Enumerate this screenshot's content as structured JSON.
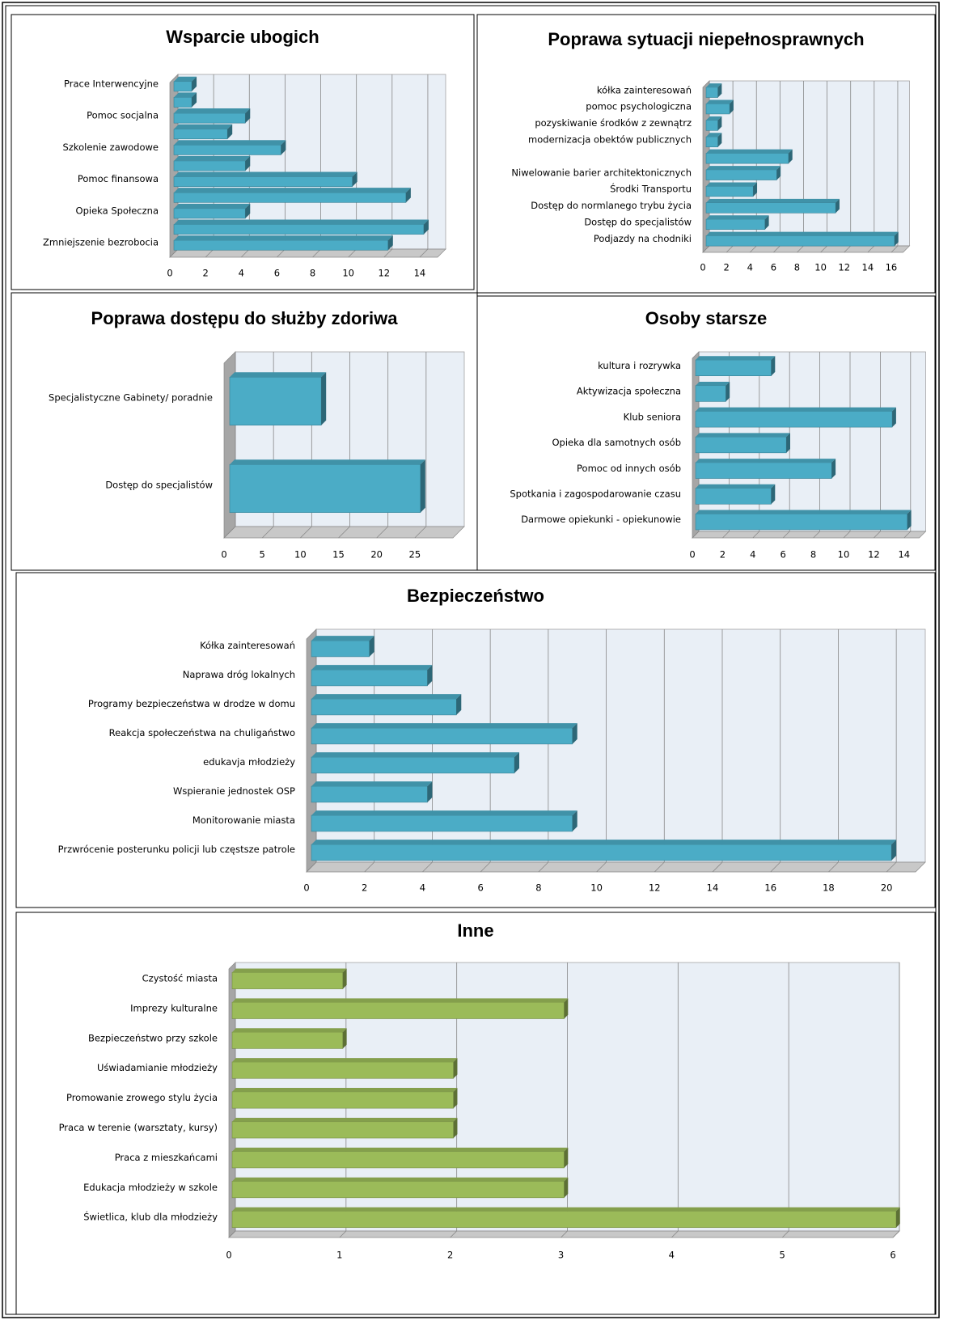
{
  "chart_data": [
    {
      "type": "bar",
      "title": "Wsparcie ubogich",
      "categories": [
        "Prace Interwencyjne",
        null,
        "Pomoc socjalna",
        null,
        "Szkolenie zawodowe",
        null,
        "Pomoc finansowa",
        null,
        "Opieka Społeczna",
        null,
        "Zmniejszenie bezrobocia"
      ],
      "values": [
        1,
        1,
        4,
        3,
        6,
        4,
        10,
        13,
        4,
        14,
        12
      ],
      "color": "#4bacc6",
      "xlim": [
        0,
        15
      ],
      "xticks": [
        0,
        2,
        4,
        6,
        8,
        10,
        12,
        14
      ],
      "grid": true
    },
    {
      "type": "bar",
      "title": "Poprawa sytuacji niepełnosprawnych",
      "categories": [
        "kółka zainteresowań",
        "pomoc psychologiczna",
        "pozyskiwanie środków z zewnątrz",
        "modernizacja obektów publicznych",
        null,
        "Niwelowanie barier architektonicznych",
        "Środki Transportu",
        "Dostęp do normlanego trybu życia",
        "Dostęp do specjalistów",
        "Podjazdy na chodniki"
      ],
      "values": [
        1,
        2,
        1,
        1,
        7,
        6,
        4,
        11,
        5,
        16
      ],
      "color": "#4bacc6",
      "xlim": [
        0,
        17
      ],
      "xticks": [
        0,
        2,
        4,
        6,
        8,
        10,
        12,
        14,
        16
      ],
      "grid": true
    },
    {
      "type": "bar",
      "title": "Poprawa dostępu do służby zdoriwa",
      "categories": [
        "Specjalistyczne Gabinety/ poradnie",
        "Dostęp do specjalistów"
      ],
      "values": [
        12,
        25
      ],
      "color": "#4bacc6",
      "xlim": [
        0,
        30
      ],
      "xticks": [
        0,
        5,
        10,
        15,
        20,
        25
      ],
      "grid": true
    },
    {
      "type": "bar",
      "title": "Osoby starsze",
      "categories": [
        "kultura i rozrywka",
        "Aktywizacja społeczna",
        "Klub seniora",
        "Opieka dla samotnych osób",
        "Pomoc od innych osób",
        "Spotkania i zagospodarowanie czasu",
        "Darmowe opiekunki - opiekunowie"
      ],
      "values": [
        5,
        2,
        13,
        6,
        9,
        5,
        14
      ],
      "color": "#4bacc6",
      "xlim": [
        0,
        15
      ],
      "xticks": [
        0,
        2,
        4,
        6,
        8,
        10,
        12,
        14
      ],
      "grid": true
    },
    {
      "type": "bar",
      "title": "Bezpieczeństwo",
      "categories": [
        "Kółka zainteresowań",
        "Naprawa dróg lokalnych",
        "Programy bezpieczeństwa w drodze w domu",
        "Reakcja społeczeństwa na chuligaństwo",
        "edukavja młodzieży",
        "Wspieranie jednostek OSP",
        "Monitorowanie miasta",
        "Przwrócenie posterunku policji lub częstsze patrole"
      ],
      "values": [
        2,
        4,
        5,
        9,
        7,
        4,
        9,
        20
      ],
      "color": "#4bacc6",
      "xlim": [
        0,
        21
      ],
      "xticks": [
        0,
        2,
        4,
        6,
        8,
        10,
        12,
        14,
        16,
        18,
        20
      ],
      "grid": true
    },
    {
      "type": "bar",
      "title": "Inne",
      "categories": [
        "Czystość miasta",
        "Imprezy kulturalne",
        "Bezpieczeństwo przy szkole",
        "Uświadamianie młodzieży",
        "Promowanie zrowego stylu życia",
        "Praca w terenie (warsztaty, kursy)",
        "Praca z mieszkańcami",
        "Edukacja młodzieży w szkole",
        "Świetlica, klub dla młodzieży"
      ],
      "values": [
        1,
        3,
        1,
        2,
        2,
        2,
        3,
        3,
        6
      ],
      "color": "#9bbb59",
      "xlim": [
        0,
        6
      ],
      "xticks": [
        0,
        1,
        2,
        3,
        4,
        5,
        6
      ],
      "grid": true
    }
  ]
}
